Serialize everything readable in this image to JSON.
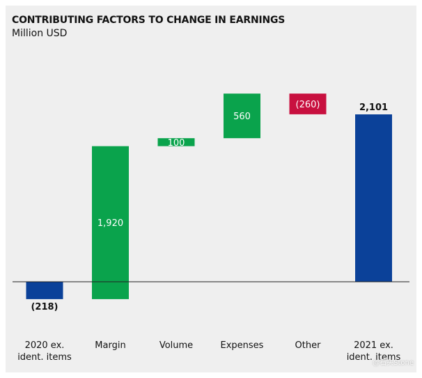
{
  "header": {
    "title": "CONTRIBUTING FACTORS TO CHANGE IN EARNINGS",
    "subtitle": "Million USD"
  },
  "chart_data": {
    "type": "waterfall",
    "title": "CONTRIBUTING FACTORS TO CHANGE IN EARNINGS",
    "ylabel": "Million USD",
    "categories": [
      "2020 ex. ident. items",
      "Margin",
      "Volume",
      "Expenses",
      "Other",
      "2021 ex. ident. items"
    ],
    "category_lines": [
      [
        "2020 ex.",
        "ident. items"
      ],
      [
        "Margin"
      ],
      [
        "Volume"
      ],
      [
        "Expenses"
      ],
      [
        "Other"
      ],
      [
        "2021 ex.",
        "ident. items"
      ]
    ],
    "bars": [
      {
        "label": "2020 ex. ident. items",
        "kind": "total",
        "start": 0,
        "end": -218,
        "value_label": "(218)",
        "color": "#0b4199"
      },
      {
        "label": "Margin",
        "kind": "delta",
        "start": -218,
        "end": 1702,
        "value_label": "1,920",
        "color": "#0aa34c"
      },
      {
        "label": "Volume",
        "kind": "delta",
        "start": 1702,
        "end": 1802,
        "value_label": "100",
        "color": "#0aa34c"
      },
      {
        "label": "Expenses",
        "kind": "delta",
        "start": 1802,
        "end": 2362,
        "value_label": "560",
        "color": "#0aa34c"
      },
      {
        "label": "Other",
        "kind": "delta",
        "start": 2362,
        "end": 2102,
        "value_label": "(260)",
        "color": "#c8103f"
      },
      {
        "label": "2021 ex. ident. items",
        "kind": "total",
        "start": 0,
        "end": 2101,
        "value_label": "2,101",
        "color": "#0b4199"
      }
    ],
    "ylim": [
      -400,
      2550
    ],
    "grid": false,
    "legend": "none"
  },
  "watermark": "@石头Stone"
}
